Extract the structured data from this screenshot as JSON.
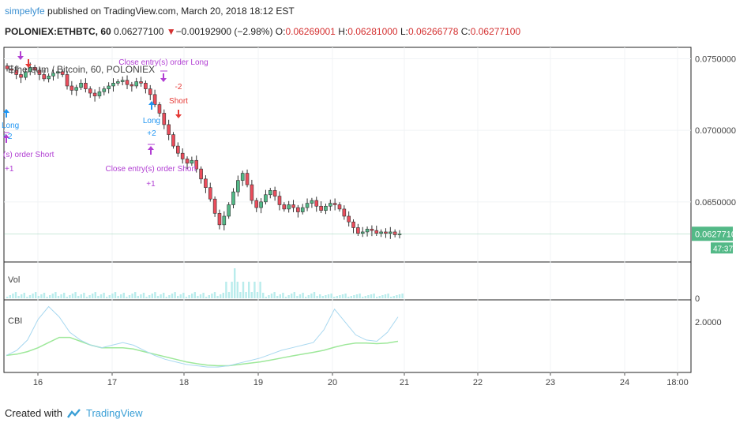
{
  "header": {
    "user": "simpelyfe",
    "published_text": " published on TradingView.com, March 20, 2018 18:12 EST"
  },
  "ticker": {
    "symbol": "POLONIEX:ETHBTC, 60",
    "last": "0.06277100",
    "down_arrow": "▼",
    "change": "−0.00192900 (−2.98%)",
    "o_label": "O:",
    "o_value": "0.06269001",
    "h_label": "H:",
    "h_value": "0.06281000",
    "l_label": "L:",
    "l_value": "0.06266778",
    "c_label": "C:",
    "c_value": "0.06277100"
  },
  "chart_title": "Ethereum / Bitcoin, 60, POLONIEX",
  "price_axis": {
    "ticks": [
      "0.07500000",
      "0.07000000",
      "0.06500000"
    ],
    "last_price": "0.06277100",
    "countdown": "47:37"
  },
  "volume_pane": {
    "label": "Vol",
    "axis_tick": "0"
  },
  "cbi_pane": {
    "label": "CBI",
    "axis_tick": "2.0000"
  },
  "time_axis": {
    "ticks": [
      "16",
      "17",
      "18",
      "19",
      "20",
      "21",
      "22",
      "23",
      "24",
      "18:00"
    ]
  },
  "signals": [
    {
      "text": "Long",
      "sub": "+2",
      "type": "long"
    },
    {
      "text": "(s) order Short",
      "sub": "+1",
      "type": "close"
    },
    {
      "text": "Close entry(s) order Long",
      "sub": "",
      "type": "close"
    },
    {
      "text": "Short",
      "sub": "-2",
      "type": "short"
    },
    {
      "text": "Long",
      "sub": "+2",
      "type": "long"
    },
    {
      "text": "Close entry(s) order Short",
      "sub": "+1",
      "type": "close"
    }
  ],
  "colors": {
    "bull": "#53b987",
    "bear": "#eb4d5c",
    "candle_dark": "#5a2428",
    "last_price_bg": "#53b987",
    "long": "#2196f3",
    "short": "#e53935",
    "close": "#b13ed3",
    "cbi_fast": "#a8d8f0",
    "cbi_slow": "#9ee89a",
    "volume": "#b9ecec",
    "brand": "#3a9fd6"
  },
  "footer": {
    "created_with": "Created with",
    "brand": "TradingView"
  },
  "chart_data": {
    "type": "candlestick",
    "title": "Ethereum / Bitcoin, 60, POLONIEX",
    "ylim": [
      0.0608,
      0.0758
    ],
    "y_ticks": [
      0.075,
      0.07,
      0.065
    ],
    "x_ticks": [
      "16",
      "17",
      "18",
      "19",
      "20",
      "21",
      "22",
      "23",
      "24",
      "18:00"
    ],
    "close_series": [
      0.0743,
      0.0742,
      0.0739,
      0.0737,
      0.0741,
      0.0744,
      0.0742,
      0.0739,
      0.0736,
      0.0738,
      0.074,
      0.0741,
      0.0739,
      0.0731,
      0.0728,
      0.073,
      0.0733,
      0.0729,
      0.0726,
      0.0724,
      0.0727,
      0.0729,
      0.0731,
      0.0733,
      0.0734,
      0.0735,
      0.0732,
      0.0731,
      0.0734,
      0.0733,
      0.0729,
      0.0725,
      0.0718,
      0.0712,
      0.0704,
      0.0697,
      0.0689,
      0.0684,
      0.068,
      0.0677,
      0.0679,
      0.0673,
      0.0666,
      0.066,
      0.0652,
      0.0642,
      0.0634,
      0.064,
      0.0648,
      0.0657,
      0.0665,
      0.067,
      0.0662,
      0.0651,
      0.0646,
      0.065,
      0.0655,
      0.0658,
      0.0654,
      0.0648,
      0.0645,
      0.0648,
      0.0646,
      0.0643,
      0.0646,
      0.0649,
      0.0651,
      0.0647,
      0.0644,
      0.0647,
      0.0649,
      0.0648,
      0.0645,
      0.064,
      0.0636,
      0.0632,
      0.0628,
      0.0629,
      0.0631,
      0.063,
      0.0628,
      0.0629,
      0.0628,
      0.0629,
      0.0627,
      0.06277
    ],
    "last_price": 0.062771,
    "volume_label": "Vol",
    "cbi_label": "CBI",
    "cbi_fast": [
      1.3,
      1.5,
      1.9,
      2.7,
      3.2,
      2.8,
      2.2,
      1.9,
      1.7,
      1.6,
      1.7,
      1.8,
      1.7,
      1.5,
      1.3,
      1.15,
      1.05,
      0.95,
      0.9,
      0.85,
      0.85,
      0.9,
      1.0,
      1.1,
      1.2,
      1.35,
      1.5,
      1.6,
      1.7,
      1.8,
      2.3,
      3.1,
      2.6,
      2.1,
      1.9,
      1.85,
      2.2,
      2.8
    ],
    "cbi_slow": [
      1.3,
      1.35,
      1.45,
      1.6,
      1.8,
      2.0,
      2.0,
      1.85,
      1.7,
      1.6,
      1.6,
      1.6,
      1.55,
      1.45,
      1.35,
      1.25,
      1.15,
      1.05,
      0.98,
      0.92,
      0.9,
      0.9,
      0.95,
      1.0,
      1.05,
      1.12,
      1.2,
      1.28,
      1.35,
      1.42,
      1.5,
      1.62,
      1.72,
      1.78,
      1.78,
      1.76,
      1.78,
      1.85
    ]
  }
}
